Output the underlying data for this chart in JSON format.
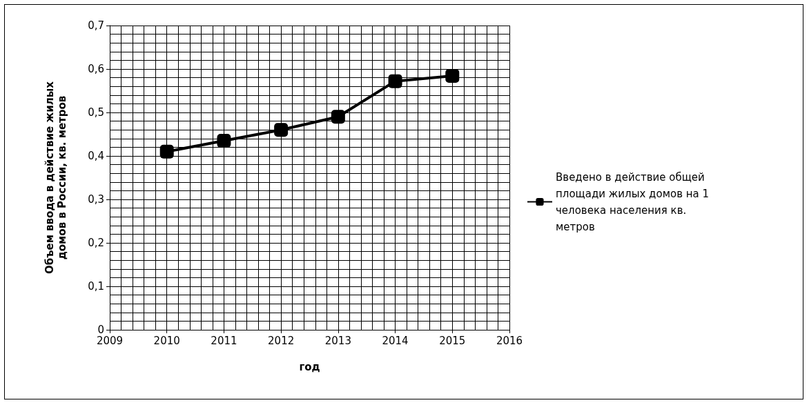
{
  "chart_data": {
    "type": "line",
    "xlabel": "год",
    "ylabel": "Объем ввода в действие жилых домов в России, кв. метров",
    "x": [
      2010,
      2011,
      2012,
      2013,
      2014,
      2015
    ],
    "series": [
      {
        "name": "Введено в действие общей площади жилых домов на 1 человека населения кв. метров",
        "color": "#000000",
        "values": [
          0.41,
          0.435,
          0.46,
          0.49,
          0.572,
          0.584
        ]
      }
    ],
    "xlim": [
      2009,
      2016
    ],
    "xticks": [
      2009,
      2010,
      2011,
      2012,
      2013,
      2014,
      2015,
      2016
    ],
    "ylim": [
      0,
      0.7
    ],
    "yticks": [
      0,
      {
        "value": 0.1,
        "label": "0,1"
      },
      {
        "value": 0.2,
        "label": "0,2"
      },
      {
        "value": 0.3,
        "label": "0,3"
      },
      {
        "value": 0.4,
        "label": "0,4"
      },
      {
        "value": 0.5,
        "label": "0,5"
      },
      {
        "value": 0.6,
        "label": "0,6"
      },
      {
        "value": 0.7,
        "label": "0,7"
      }
    ],
    "grid": true,
    "legend": "right",
    "marker": "square",
    "line_style": "solid"
  }
}
